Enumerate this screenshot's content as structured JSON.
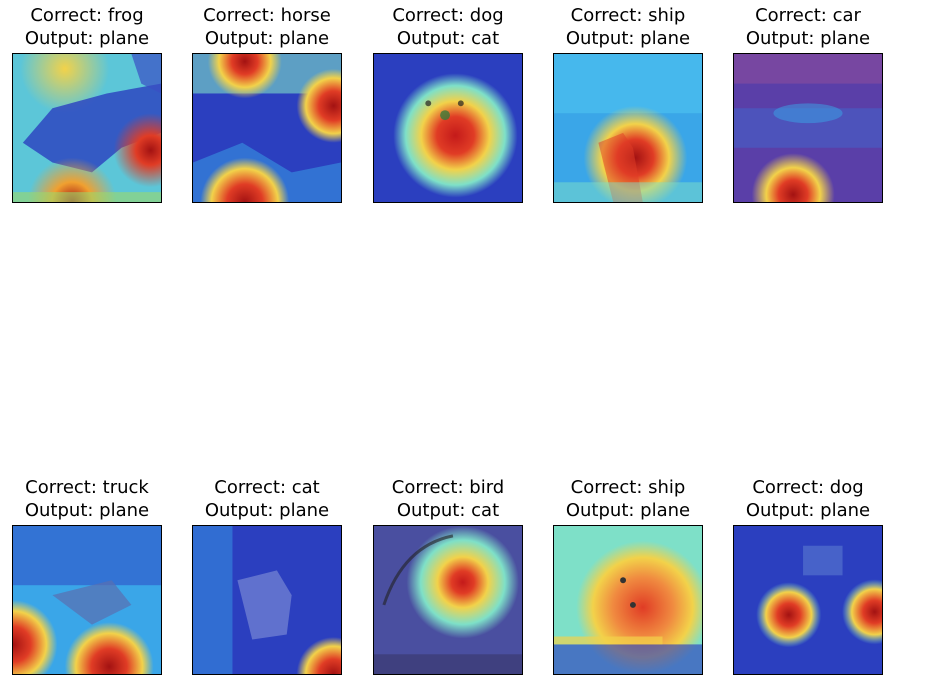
{
  "rows": [
    {
      "panels": [
        {
          "correct": "Correct: frog",
          "output": "Output: plane"
        },
        {
          "correct": "Correct: horse",
          "output": "Output: plane"
        },
        {
          "correct": "Correct: dog",
          "output": "Output: cat"
        },
        {
          "correct": "Correct: ship",
          "output": "Output: plane"
        },
        {
          "correct": "Correct: car",
          "output": "Output: plane"
        }
      ]
    },
    {
      "panels": [
        {
          "correct": "Correct: truck",
          "output": "Output: plane"
        },
        {
          "correct": "Correct: cat",
          "output": "Output: plane"
        },
        {
          "correct": "Correct: bird",
          "output": "Output: cat"
        },
        {
          "correct": "Correct: ship",
          "output": "Output: plane"
        },
        {
          "correct": "Correct: dog",
          "output": "Output: plane"
        }
      ]
    }
  ],
  "colors": {
    "cold": "#2b3fbf",
    "cool": "#3aa6e8",
    "mid": "#7ee0c8",
    "warm": "#f2d24a",
    "hot": "#e03c25",
    "core": "#a31212"
  }
}
